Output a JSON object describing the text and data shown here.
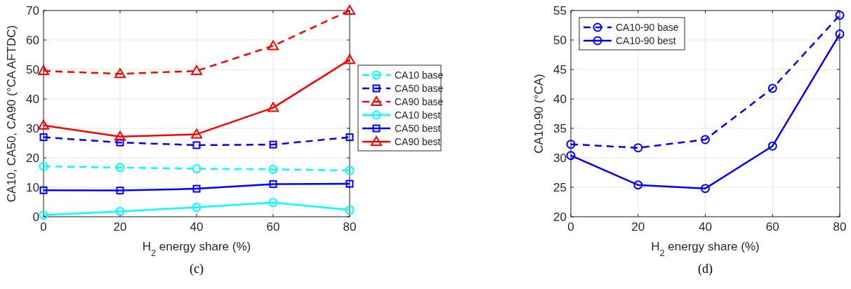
{
  "chart_data": [
    {
      "type": "line",
      "xlabel": "H$_{2}$ energy share (%)",
      "ylabel": "CA10, CA50, CA90 (°CA AFTDC)",
      "x": [
        0,
        20,
        40,
        60,
        80
      ],
      "xlim": [
        0,
        80
      ],
      "xticks": [
        0,
        20,
        40,
        60,
        80
      ],
      "ylim": [
        0,
        70
      ],
      "yticks": [
        0,
        10,
        20,
        30,
        40,
        50,
        60,
        70
      ],
      "grid": true,
      "legend": "right",
      "annotations": [
        "(c)"
      ],
      "series": [
        {
          "name": "CA10 base",
          "color": "#00ffff",
          "marker": "circle",
          "line_style": "dashed",
          "values": [
            17.1,
            16.7,
            16.3,
            16.1,
            15.7
          ]
        },
        {
          "name": "CA50 base",
          "color": "#0000ff",
          "marker": "square",
          "line_style": "dashed",
          "values": [
            27,
            25.2,
            24.3,
            24.5,
            27
          ]
        },
        {
          "name": "CA90 base",
          "color": "#ff0000",
          "marker": "triangle",
          "line_style": "dashed",
          "values": [
            49.5,
            48.5,
            49.5,
            58,
            70
          ]
        },
        {
          "name": "CA10 best",
          "color": "#00ffff",
          "marker": "circle",
          "line_style": "solid",
          "values": [
            0.6,
            1.8,
            3.2,
            4.8,
            2.3
          ]
        },
        {
          "name": "CA50 best",
          "color": "#0000ff",
          "marker": "square",
          "line_style": "solid",
          "values": [
            9,
            8.9,
            9.5,
            11.1,
            11.2
          ]
        },
        {
          "name": "CA90 best",
          "color": "#ff0000",
          "marker": "triangle",
          "line_style": "solid",
          "values": [
            31,
            27.2,
            28,
            37,
            53.3
          ]
        }
      ]
    },
    {
      "type": "line",
      "xlabel": "H$_{2}$ energy share (%)",
      "ylabel": "CA10-90 (°CA)",
      "x": [
        0,
        20,
        40,
        60,
        80
      ],
      "xlim": [
        0,
        80
      ],
      "xticks": [
        0,
        20,
        40,
        60,
        80
      ],
      "ylim": [
        20,
        55
      ],
      "yticks": [
        20,
        25,
        30,
        35,
        40,
        45,
        50,
        55
      ],
      "grid": true,
      "legend": "top left",
      "annotations": [
        "(d)"
      ],
      "series": [
        {
          "name": "CA10-90 base",
          "color": "#0000ff",
          "marker": "circle",
          "line_style": "dashed",
          "values": [
            32.3,
            31.7,
            33.1,
            41.8,
            54.2
          ]
        },
        {
          "name": "CA10-90 best",
          "color": "#0000ff",
          "marker": "circle",
          "line_style": "solid",
          "values": [
            30.4,
            25.4,
            24.8,
            32,
            51
          ]
        }
      ]
    }
  ]
}
